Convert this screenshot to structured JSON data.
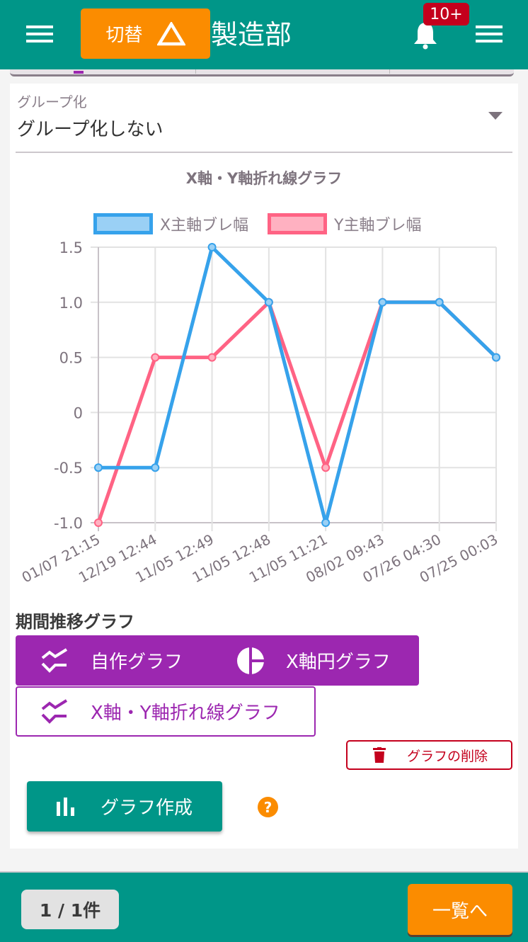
{
  "header": {
    "switch_label": "切替",
    "switch_icon": "triangle-warning-icon",
    "department": "製造部",
    "notification_badge": "10+",
    "colors": {
      "bar": "#009688",
      "switch": "#fb8c00",
      "badge": "#c4001d"
    }
  },
  "grouping": {
    "label": "グループ化",
    "value": "グループ化しない"
  },
  "chart": {
    "title": "X軸・Y軸折れ線グラフ",
    "legend": [
      {
        "label": "X主軸ブレ幅",
        "color": "#36a2eb",
        "fill": "#9ad0f5"
      },
      {
        "label": "Y主軸ブレ幅",
        "color": "#ff6384",
        "fill": "#ffb1c1"
      }
    ],
    "y_ticks": [
      "1.5",
      "1.0",
      "0.5",
      "0",
      "-0.5",
      "-1.0"
    ],
    "x_labels": [
      "01/07 21:15",
      "12/19 12:44",
      "11/05 12:49",
      "11/05 12:48",
      "11/05 11:21",
      "08/02 09:43",
      "07/26 04:30",
      "07/25 00:03"
    ]
  },
  "chart_data": {
    "type": "line",
    "title": "X軸・Y軸折れ線グラフ",
    "xlabel": "",
    "ylabel": "",
    "categories": [
      "01/07 21:15",
      "12/19 12:44",
      "11/05 12:49",
      "11/05 12:48",
      "11/05 11:21",
      "08/02 09:43",
      "07/26 04:30",
      "07/25 00:03"
    ],
    "series": [
      {
        "name": "X主軸ブレ幅",
        "color": "#36a2eb",
        "values": [
          -0.5,
          -0.5,
          1.5,
          1.0,
          -1.0,
          1.0,
          1.0,
          0.5
        ]
      },
      {
        "name": "Y主軸ブレ幅",
        "color": "#ff6384",
        "values": [
          -1.0,
          0.5,
          0.5,
          1.0,
          -0.5,
          1.0,
          1.0,
          0.5
        ]
      }
    ],
    "ylim": [
      -1.0,
      1.5
    ],
    "y_ticks": [
      1.5,
      1.0,
      0.5,
      0,
      -0.5,
      -1.0
    ],
    "grid": true,
    "legend_position": "top"
  },
  "period_section": {
    "title": "期間推移グラフ",
    "buttons": [
      {
        "label": "自作グラフ",
        "icon": "multiline-chart-icon",
        "selected": true
      },
      {
        "label": "X軸円グラフ",
        "icon": "pie-chart-icon",
        "selected": true
      },
      {
        "label": "X軸・Y軸折れ線グラフ",
        "icon": "multiline-chart-icon",
        "selected": false
      }
    ],
    "delete_label": "グラフの削除",
    "create_label": "グラフ作成",
    "help_label": "?"
  },
  "footer": {
    "count": "1 / 1件",
    "list_label": "一覧へ"
  }
}
